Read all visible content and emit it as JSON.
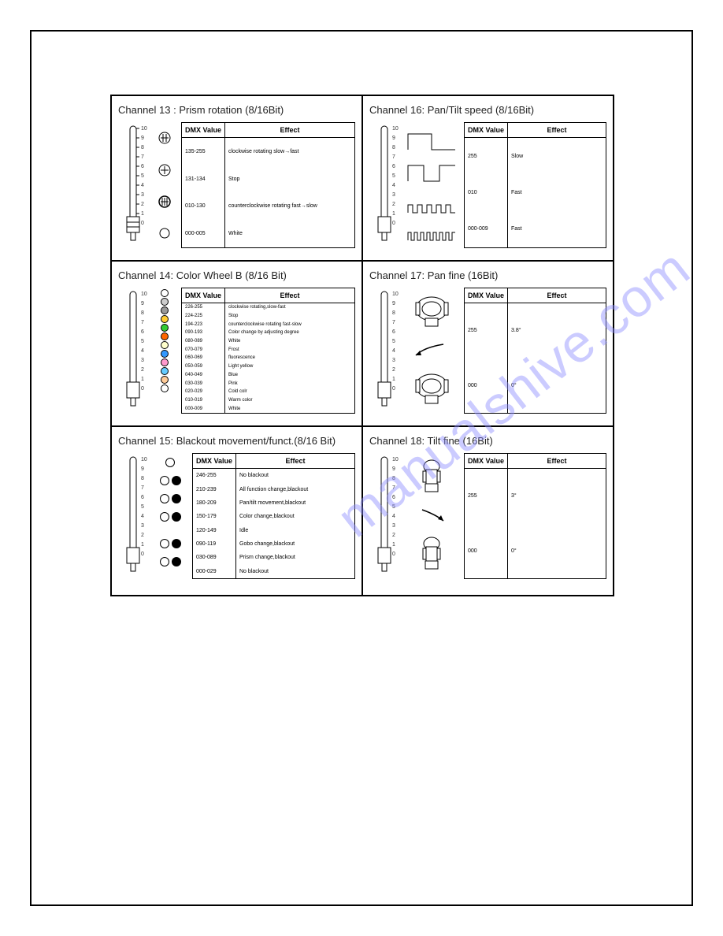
{
  "watermark": "manualshive.com",
  "slider": {
    "ticks": [
      10,
      9,
      8,
      7,
      6,
      5,
      4,
      3,
      2,
      1,
      0
    ]
  },
  "panels": [
    {
      "title": "Channel 13 :  Prism rotation  (8/16Bit)",
      "header": [
        "DMX Value",
        "Effect"
      ],
      "rows": [
        {
          "dmx": "135-255",
          "effect": "clockwise rotating slow→fast"
        },
        {
          "dmx": "131-134",
          "effect": "Stop"
        },
        {
          "dmx": "010-130",
          "effect": "counterclockwise rotating fast→slow"
        },
        {
          "dmx": "000-005",
          "effect": "White"
        }
      ]
    },
    {
      "title": "Channel 16:  Pan/Tilt speed (8/16Bit)",
      "header": [
        "DMX Value",
        "Effect"
      ],
      "rows": [
        {
          "dmx": "255",
          "effect": "Slow"
        },
        {
          "dmx": "010",
          "effect": "Fast"
        },
        {
          "dmx": "000-009",
          "effect": "Fast"
        }
      ]
    },
    {
      "title": "Channel 14: Color Wheel B (8/16 Bit)",
      "header": [
        "DMX Value",
        "Effect"
      ],
      "rows": [
        {
          "dmx": "226-255",
          "effect": "clockwise rotating,slow-fast"
        },
        {
          "dmx": "224-225",
          "effect": "Stop"
        },
        {
          "dmx": "194-223",
          "effect": "counterclockwise rotating fast-slow"
        },
        {
          "dmx": "090-193",
          "effect": "Color change by adjusting degree"
        },
        {
          "dmx": "080-089",
          "effect": "White"
        },
        {
          "dmx": "070-079",
          "effect": "Frost"
        },
        {
          "dmx": "060-069",
          "effect": "fluorescence"
        },
        {
          "dmx": "050-059",
          "effect": "Light yellow"
        },
        {
          "dmx": "040-049",
          "effect": "Blue"
        },
        {
          "dmx": "030-039",
          "effect": "Pink"
        },
        {
          "dmx": "020-029",
          "effect": "Cold colr"
        },
        {
          "dmx": "010-019",
          "effect": "Warm color"
        },
        {
          "dmx": "000-009",
          "effect": "White"
        }
      ],
      "swatch_colors": [
        "#ffffff",
        "#cccccc",
        "#999999",
        "#ffcc33",
        "#33cc33",
        "#ff6600",
        "#ffffcc",
        "#3399ff",
        "#ff99cc",
        "#66ccff",
        "#ffcc99",
        "#ffffff"
      ]
    },
    {
      "title": "Channel 17:  Pan fine  (16Bit)",
      "header": [
        "DMX Value",
        "Effect"
      ],
      "rows": [
        {
          "dmx": "255",
          "effect": "3.8°"
        },
        {
          "dmx": "000",
          "effect": "0°"
        }
      ]
    },
    {
      "title": "Channel 15: Blackout movement/funct.(8/16 Bit)",
      "header": [
        "DMX Value",
        "Effect"
      ],
      "rows": [
        {
          "dmx": "246-255",
          "effect": "No blackout"
        },
        {
          "dmx": "210-239",
          "effect": "All function change,blackout"
        },
        {
          "dmx": "180-209",
          "effect": "Pan/tilt movement,blackout"
        },
        {
          "dmx": "150-179",
          "effect": "Color change,blackout"
        },
        {
          "dmx": "120-149",
          "effect": "Idle"
        },
        {
          "dmx": "090-119",
          "effect": "Gobo change,blackout"
        },
        {
          "dmx": "030-089",
          "effect": "Prism change,blackout"
        },
        {
          "dmx": "000-029",
          "effect": "No blackout"
        }
      ]
    },
    {
      "title": "Channel 18:  Tilt fine  (16Bit)",
      "header": [
        "DMX Value",
        "Effect"
      ],
      "rows": [
        {
          "dmx": "255",
          "effect": "3°"
        },
        {
          "dmx": "000",
          "effect": "0°"
        }
      ]
    }
  ]
}
